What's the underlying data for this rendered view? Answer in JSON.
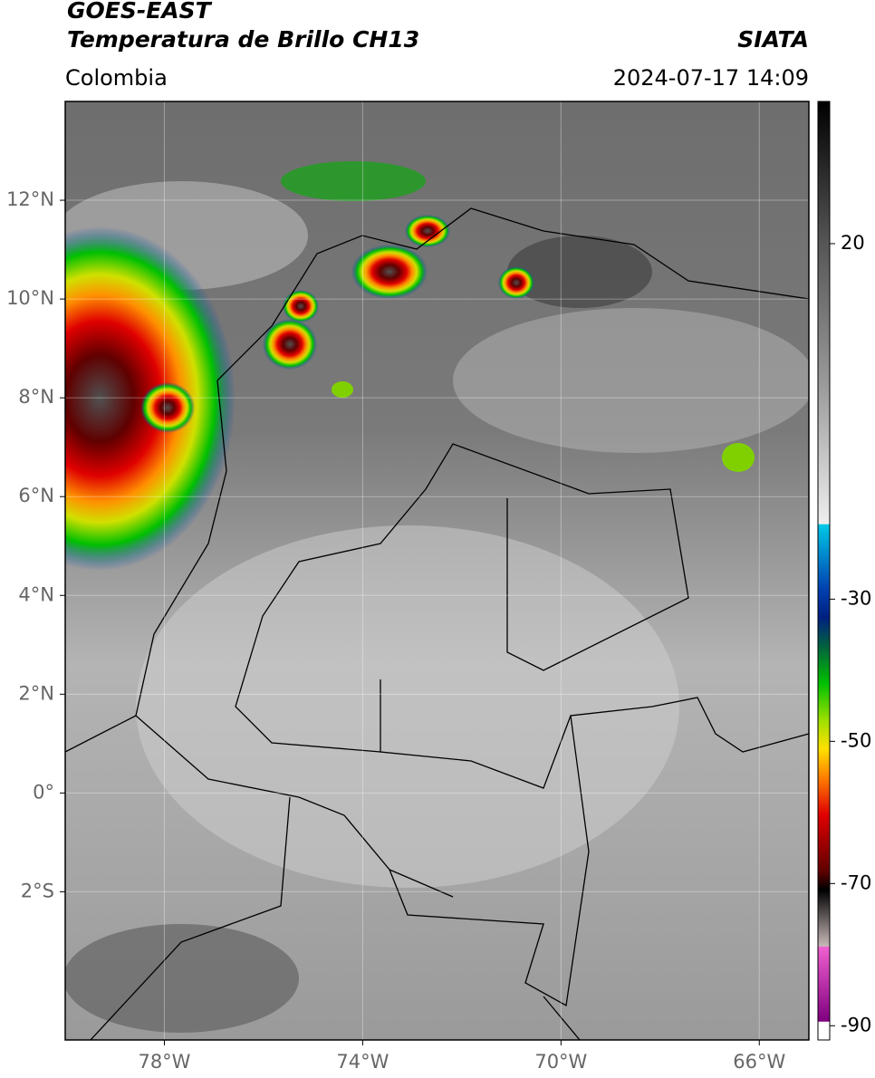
{
  "header": {
    "title": "GOES-EAST",
    "subtitle": "Temperatura de Brillo CH13",
    "source": "SIATA",
    "region": "Colombia",
    "datetime": "2024-07-17 14:09"
  },
  "map": {
    "xlim": [
      -80,
      -65
    ],
    "ylim": [
      -5,
      14
    ],
    "xticks": [
      {
        "value": -78,
        "label": "78°W"
      },
      {
        "value": -74,
        "label": "74°W"
      },
      {
        "value": -70,
        "label": "70°W"
      },
      {
        "value": -66,
        "label": "66°W"
      }
    ],
    "yticks": [
      {
        "value": 12,
        "label": "12°N"
      },
      {
        "value": 10,
        "label": "10°N"
      },
      {
        "value": 8,
        "label": "8°N"
      },
      {
        "value": 6,
        "label": "6°N"
      },
      {
        "value": 4,
        "label": "4°N"
      },
      {
        "value": 2,
        "label": "2°N"
      },
      {
        "value": 0,
        "label": "0°"
      },
      {
        "value": -2,
        "label": "2°S"
      }
    ],
    "grid": true
  },
  "colorbar": {
    "lim": [
      -92,
      40
    ],
    "ticks": [
      20,
      -30,
      -50,
      -70,
      -90
    ]
  }
}
